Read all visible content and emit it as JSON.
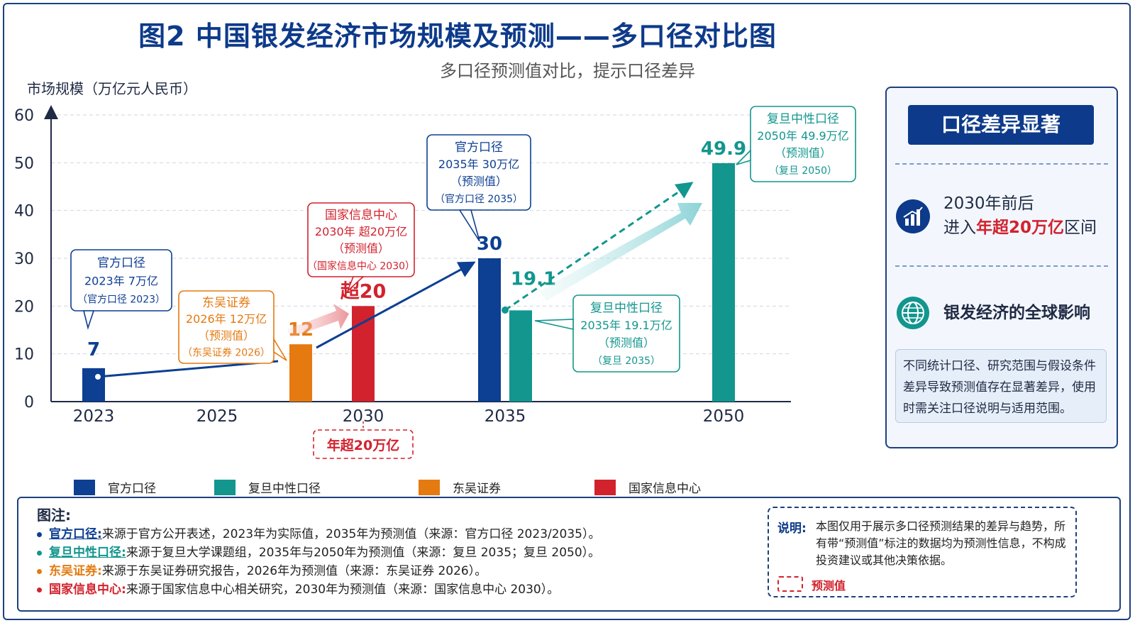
{
  "title": "图2  中国银发经济市场规模及预测——多口径对比图",
  "subtitle": "多口径预测值对比，提示口径差异",
  "chart_data": {
    "type": "bar",
    "ylabel": "市场规模（万亿元人民币）",
    "ylim": [
      0,
      60
    ],
    "yticks": [
      0,
      10,
      20,
      30,
      40,
      50,
      60
    ],
    "x_ticks": [
      "2023",
      "2025",
      "2030",
      "2035",
      "2050"
    ],
    "series": [
      {
        "name": "官方口径",
        "color": "#0d3f92",
        "points": [
          {
            "year": 2023,
            "value": 7,
            "label": "7"
          },
          {
            "year": 2035,
            "value": 30,
            "label": "30"
          }
        ]
      },
      {
        "name": "复旦中性口径",
        "color": "#12968e",
        "points": [
          {
            "year": 2035,
            "value": 19.1,
            "label": "19.1"
          },
          {
            "year": 2050,
            "value": 49.9,
            "label": "49.9"
          }
        ]
      },
      {
        "name": "东吴证券",
        "color": "#e47a10",
        "points": [
          {
            "year": 2026,
            "value": 12,
            "label": "12"
          }
        ]
      },
      {
        "name": "国家信息中心",
        "color": "#d2222d",
        "points": [
          {
            "year": 2030,
            "value": 20,
            "label": "超20"
          }
        ]
      }
    ],
    "callouts": [
      {
        "id": "official-2023",
        "lines": [
          "官方口径",
          "2023年 7万亿",
          "（官方口径 2023）"
        ],
        "color": "#0d3f92"
      },
      {
        "id": "dongwu-2026",
        "lines": [
          "东吴证券",
          "2026年 12万亿",
          "（预测值）",
          "（东吴证券 2026）"
        ],
        "color": "#e47a10"
      },
      {
        "id": "sic-2030",
        "lines": [
          "国家信息中心",
          "2030年 超20万亿",
          "（预测值）",
          "（国家信息中心 2030）"
        ],
        "color": "#d2222d"
      },
      {
        "id": "official-2035",
        "lines": [
          "官方口径",
          "2035年 30万亿",
          "（预测值）",
          "（官方口径 2035）"
        ],
        "color": "#0d3f92"
      },
      {
        "id": "fudan-2035",
        "lines": [
          "复旦中性口径",
          "2035年 19.1万亿",
          "（预测值）",
          "（复旦 2035）"
        ],
        "color": "#12968e"
      },
      {
        "id": "fudan-2050",
        "lines": [
          "复旦中性口径",
          "2050年 49.9万亿",
          "（预测值）",
          "（复旦 2050）"
        ],
        "color": "#12968e"
      }
    ],
    "annotation_2030": "年超20万亿"
  },
  "side_panel": {
    "header": "口径差异显著",
    "point1_line1": "2030年前后",
    "point1_line2_pre": "进入",
    "point1_line2_hl": "年超20万亿",
    "point1_line2_post": "区间",
    "point2": "银发经济的全球影响",
    "note": "不同统计口径、研究范围与假设条件差异导致预测值存在显著差异，使用时需关注口径说明与适用范围。",
    "icon1": "bar-chart-icon",
    "icon2": "globe-icon"
  },
  "notes": {
    "title": "图注:",
    "items": [
      {
        "label": "官方口径:",
        "text": "来源于官方公开表述，2023年为实际值，2035年为预测值（来源：官方口径 2023/2035）。",
        "color": "#0d3f92"
      },
      {
        "label": "复旦中性口径:",
        "text": "来源于复旦大学课题组，2035年与2050年为预测值（来源：复旦 2035；复旦 2050）。",
        "color": "#12968e"
      },
      {
        "label": "东吴证券:",
        "text": "来源于东吴证券研究报告，2026年为预测值（来源：东吴证券 2026）。",
        "color": "#e47a10"
      },
      {
        "label": "国家信息中心:",
        "text": "来源于国家信息中心相关研究，2030年为预测值（来源：国家信息中心 2030）。",
        "color": "#d2222d"
      }
    ]
  },
  "explain": {
    "head": "说明:",
    "body": "本图仅用于展示多口径预测结果的差异与趋势，所有带“预测值”标注的数据均为预测性信息，不构成投资建议或其他决策依据。",
    "key_label": "预测值"
  }
}
